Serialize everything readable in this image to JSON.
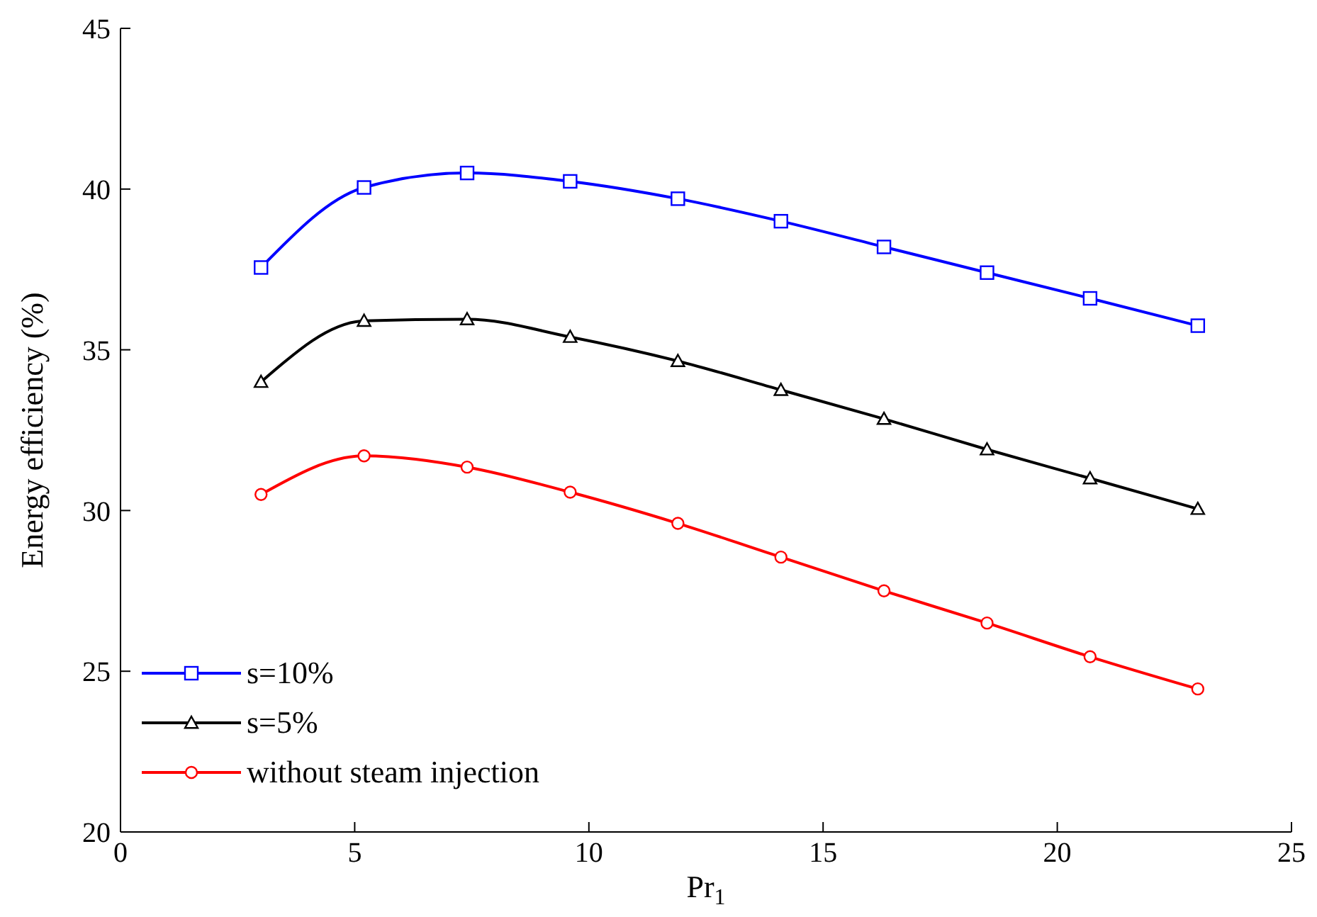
{
  "chart_data": {
    "type": "line",
    "xlabel": "Pr$_{1}$",
    "ylabel": "Energy efficiency (%)",
    "x": [
      3,
      5.2,
      7.4,
      9.6,
      11.9,
      14.1,
      16.3,
      18.5,
      20.7,
      23
    ],
    "series": [
      {
        "name": "s=10%",
        "color": "#0000ff",
        "marker": "square",
        "values": [
          37.56,
          40.05,
          40.5,
          40.24,
          39.7,
          39.0,
          38.2,
          37.4,
          36.6,
          35.75
        ]
      },
      {
        "name": "s=5%",
        "color": "#000000",
        "marker": "triangle",
        "values": [
          34.0,
          35.9,
          35.95,
          35.4,
          34.65,
          33.75,
          32.85,
          31.9,
          31.0,
          30.05
        ]
      },
      {
        "name": "without steam injection",
        "color": "#ff0000",
        "marker": "circle",
        "values": [
          30.5,
          31.7,
          31.35,
          30.57,
          29.6,
          28.55,
          27.5,
          26.5,
          25.45,
          24.45
        ]
      }
    ],
    "xlim": [
      0,
      25
    ],
    "xticks": [
      0,
      5,
      10,
      15,
      20,
      25
    ],
    "ylim": [
      20,
      45
    ],
    "yticks": [
      20,
      25,
      30,
      35,
      40,
      45
    ],
    "grid": false,
    "legend": "bottom left",
    "line_style": "solid"
  }
}
